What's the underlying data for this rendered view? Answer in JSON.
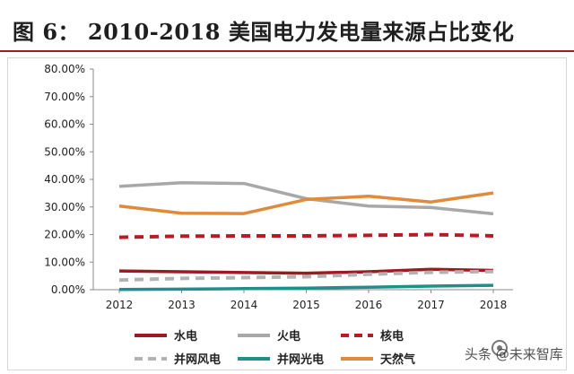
{
  "header": {
    "title": "图 6：  2010-2018 美国电力发电量来源占比变化"
  },
  "chart_data": {
    "type": "line",
    "x": [
      "2012",
      "2013",
      "2014",
      "2015",
      "2016",
      "2017",
      "2018"
    ],
    "ylim": [
      0,
      80
    ],
    "yticks": [
      "80.00%",
      "70.00%",
      "60.00%",
      "50.00%",
      "40.00%",
      "30.00%",
      "20.00%",
      "10.00%",
      "0.00%"
    ],
    "grid": false,
    "legend_position": "bottom",
    "series": [
      {
        "name": "水电",
        "values": [
          6.8,
          6.5,
          6.2,
          6.0,
          6.5,
          7.4,
          7.0
        ],
        "color": "#9c1b21",
        "style": "solid"
      },
      {
        "name": "火电",
        "values": [
          37.5,
          38.8,
          38.5,
          33.0,
          30.3,
          29.8,
          27.5
        ],
        "color": "#a8a8a8",
        "style": "solid"
      },
      {
        "name": "核电",
        "values": [
          19.0,
          19.4,
          19.5,
          19.5,
          19.7,
          20.0,
          19.5
        ],
        "color": "#b71c24",
        "style": "dashed"
      },
      {
        "name": "并网风电",
        "values": [
          3.5,
          4.1,
          4.4,
          4.7,
          5.6,
          6.3,
          6.6
        ],
        "color": "#b3b3b3",
        "style": "dashed"
      },
      {
        "name": "并网光电",
        "values": [
          0.1,
          0.2,
          0.4,
          0.6,
          0.9,
          1.3,
          1.6
        ],
        "color": "#1f8f8c",
        "style": "solid"
      },
      {
        "name": "天然气",
        "values": [
          30.3,
          27.7,
          27.6,
          32.7,
          33.9,
          31.8,
          35.1
        ],
        "color": "#e08a3c",
        "style": "solid"
      }
    ]
  },
  "watermark": {
    "text": "头条 @未来智库"
  }
}
